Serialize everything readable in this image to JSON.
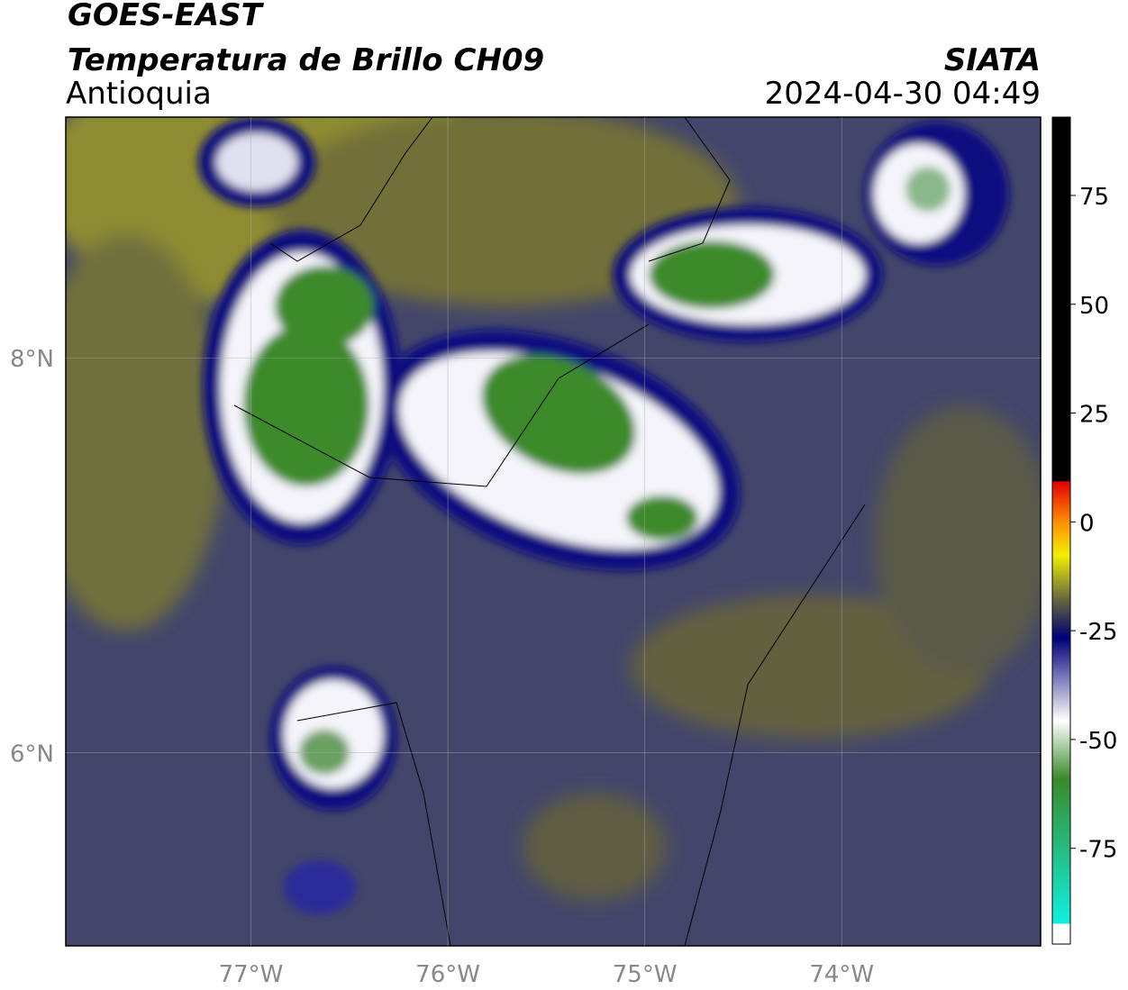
{
  "header": {
    "satellite": "GOES-EAST",
    "product": "Temperatura de Brillo CH09",
    "region": "Antioquia",
    "source": "SIATA",
    "datetime": "2024-04-30 04:49"
  },
  "map": {
    "xlim": [
      -77.94,
      -72.99
    ],
    "ylim": [
      5.02,
      9.22
    ],
    "xticks": [
      {
        "value": -77,
        "label": "77°W"
      },
      {
        "value": -76,
        "label": "76°W"
      },
      {
        "value": -75,
        "label": "75°W"
      },
      {
        "value": -74,
        "label": "74°W"
      }
    ],
    "yticks": [
      {
        "value": 8,
        "label": "8°N"
      },
      {
        "value": 6,
        "label": "6°N"
      }
    ]
  },
  "colorbar": {
    "lim": [
      -97,
      93
    ],
    "ticks": [
      75,
      50,
      25,
      0,
      -25,
      -50,
      -75
    ]
  }
}
